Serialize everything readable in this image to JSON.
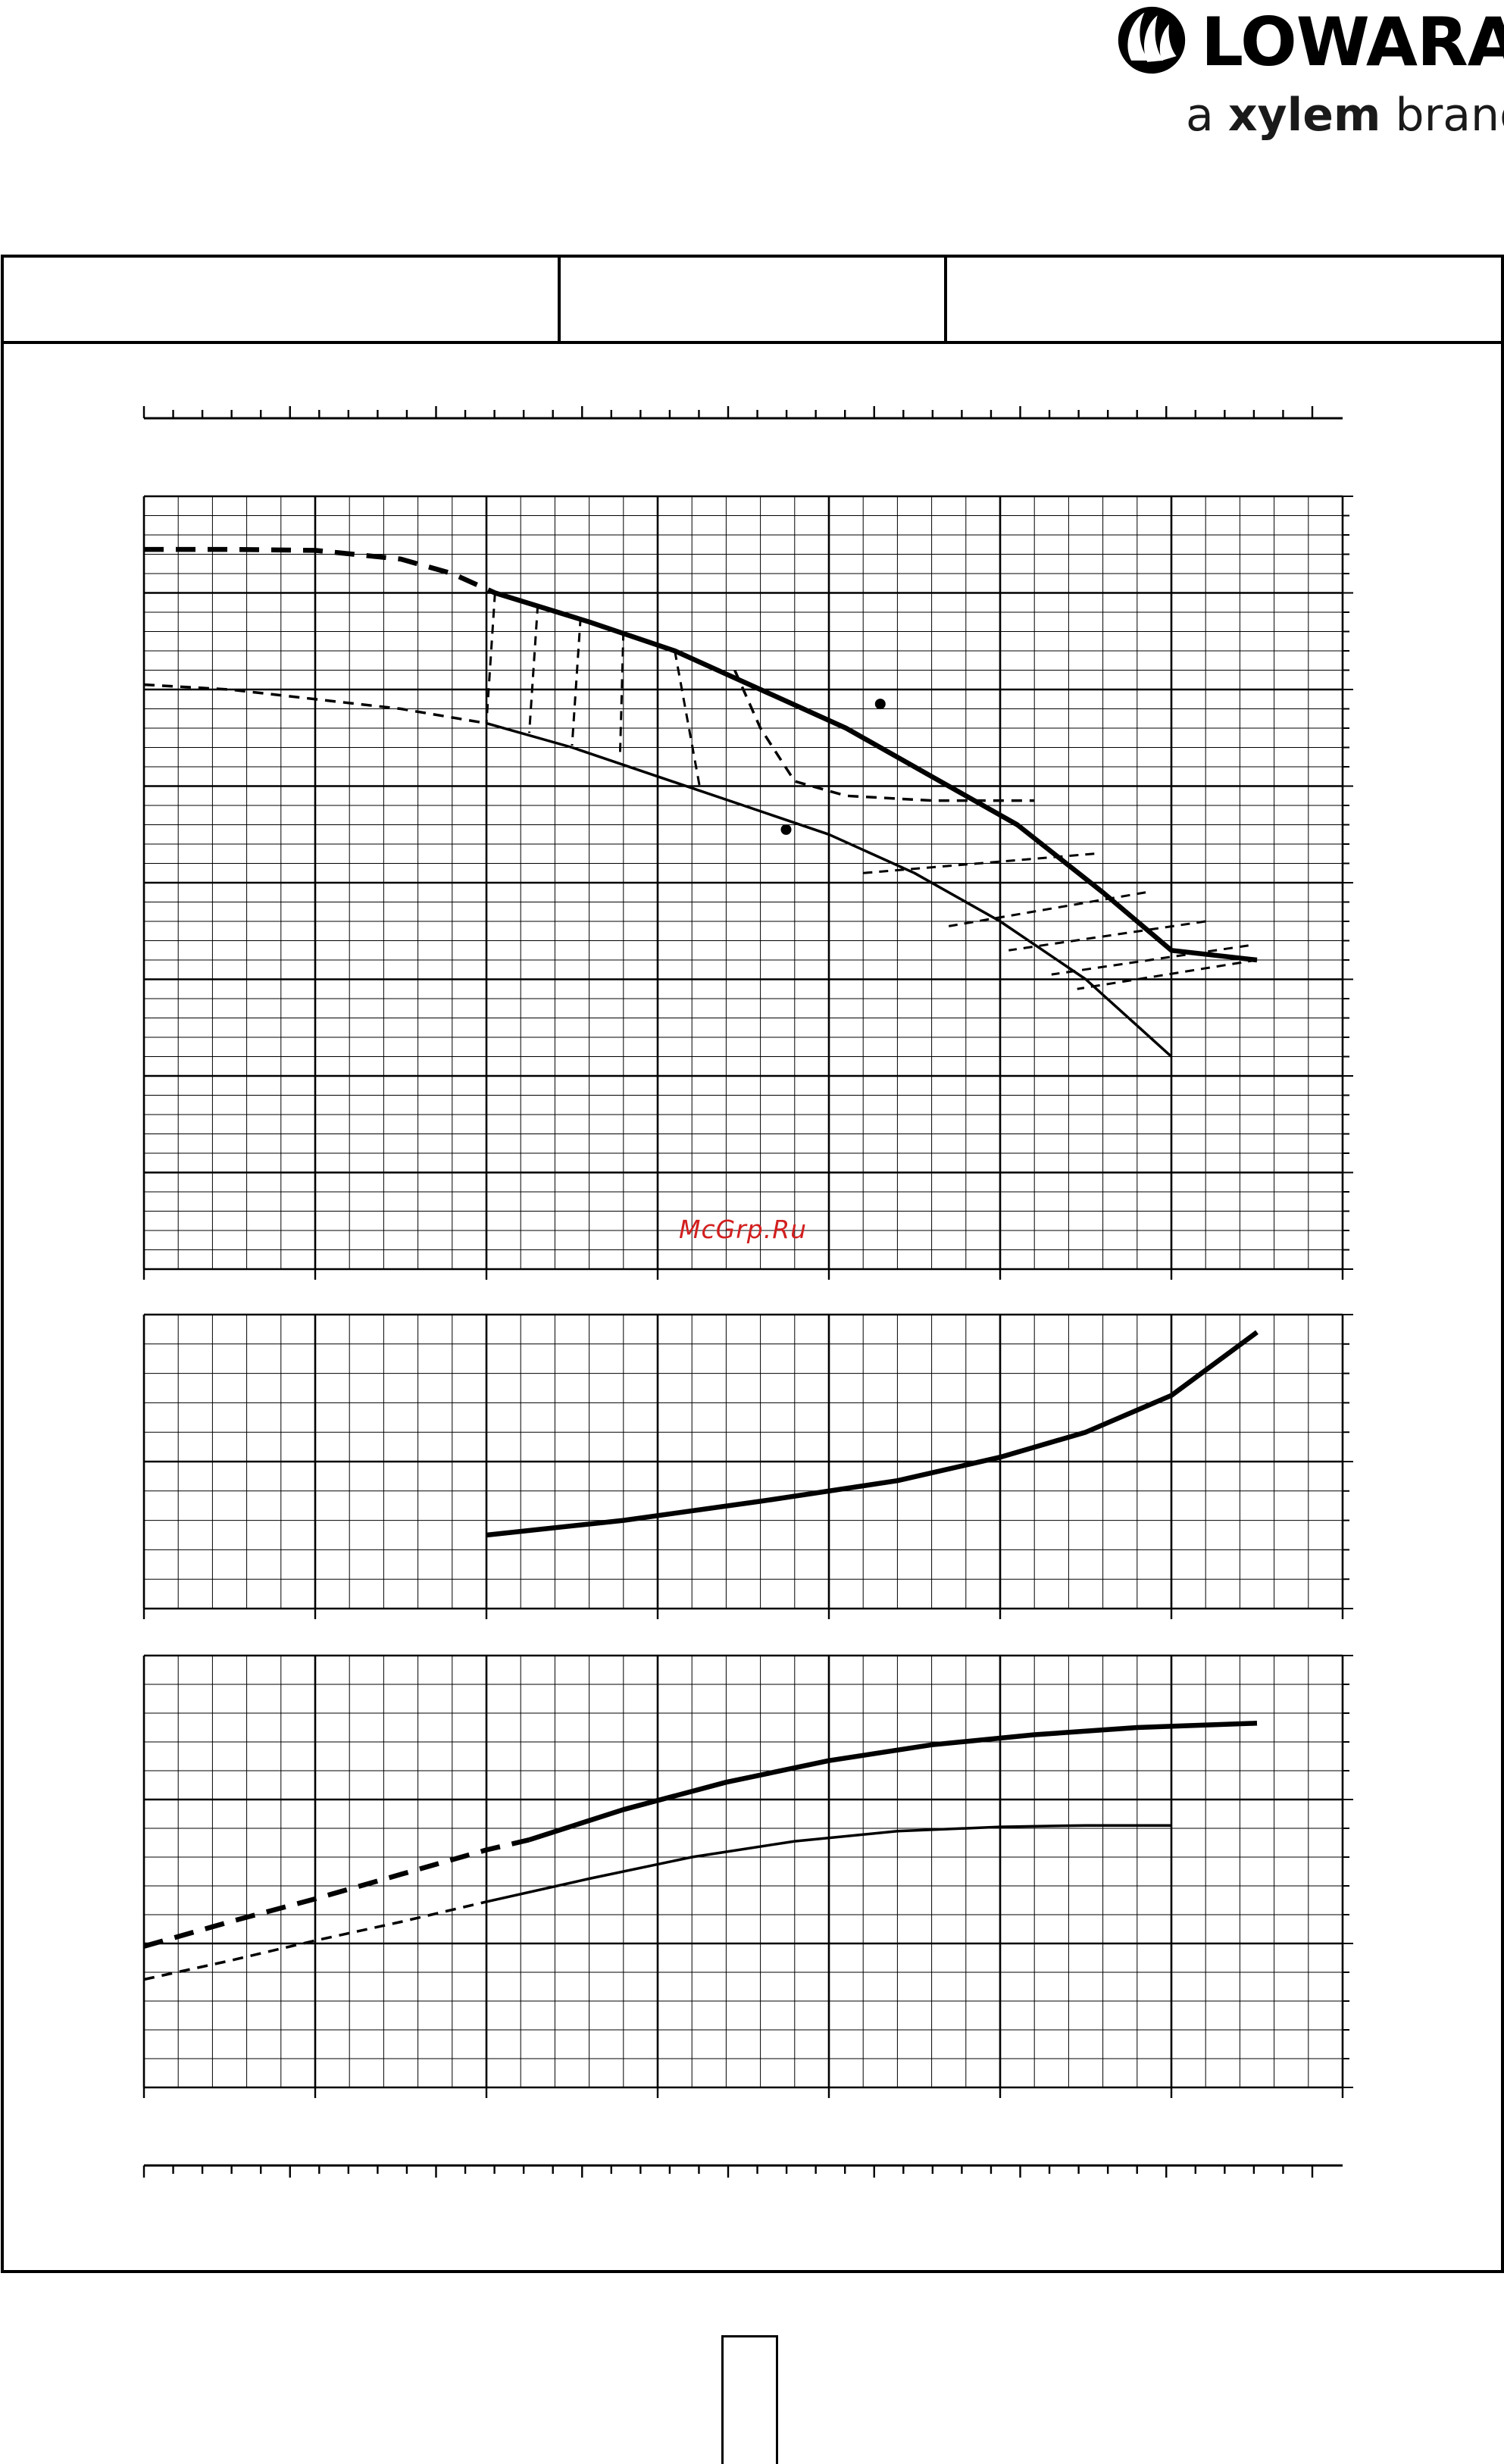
{
  "brand": {
    "name": "LOWARA",
    "tagline_prefix": "a",
    "tagline_brand": "xylem",
    "tagline_suffix": "brand"
  },
  "header": {
    "cells": [
      "",
      "",
      ""
    ]
  },
  "watermark": "McGrp.Ru",
  "page_number": "",
  "chart_data": [
    {
      "type": "line",
      "title": "",
      "xlabel": "",
      "ylabel": "",
      "xlim": [
        0,
        7
      ],
      "ylim": [
        0,
        8
      ],
      "grid": true,
      "series": [
        {
          "style": "thick-dashed",
          "x": [
            0,
            0.5,
            1.0,
            1.5,
            1.8,
            2.05
          ],
          "y": [
            7.45,
            7.45,
            7.44,
            7.35,
            7.2,
            7.0
          ]
        },
        {
          "style": "thick",
          "x": [
            2.05,
            2.6,
            3.1,
            3.6,
            4.1,
            4.6,
            5.1,
            5.6,
            6.0,
            6.5
          ],
          "y": [
            7.0,
            6.7,
            6.4,
            6.0,
            5.6,
            5.1,
            4.6,
            3.9,
            3.3,
            3.2
          ]
        },
        {
          "style": "thin-dashed",
          "x": [
            0,
            0.5,
            1.0,
            1.5,
            2.0
          ],
          "y": [
            6.05,
            6.0,
            5.9,
            5.8,
            5.65
          ]
        },
        {
          "style": "thin",
          "x": [
            2.0,
            2.5,
            3.0,
            3.5,
            4.0,
            4.5,
            5.0,
            5.5,
            6.0
          ],
          "y": [
            5.65,
            5.4,
            5.1,
            4.8,
            4.5,
            4.1,
            3.6,
            3.0,
            2.2
          ]
        },
        {
          "style": "thin-dashed",
          "x": [
            3.45,
            3.6,
            3.8,
            4.1,
            4.6,
            5.0,
            5.2
          ],
          "y": [
            6.2,
            5.6,
            5.05,
            4.9,
            4.85,
            4.85,
            4.85
          ]
        }
      ]
    },
    {
      "type": "line",
      "title": "",
      "xlabel": "",
      "ylabel": "",
      "xlim": [
        0,
        7
      ],
      "ylim": [
        0,
        2
      ],
      "grid": true,
      "series": [
        {
          "style": "thick",
          "x": [
            2.0,
            2.8,
            3.6,
            4.4,
            5.0,
            5.5,
            6.0,
            6.5
          ],
          "y": [
            0.5,
            0.6,
            0.73,
            0.87,
            1.03,
            1.2,
            1.45,
            1.88
          ]
        }
      ]
    },
    {
      "type": "line",
      "title": "",
      "xlabel": "",
      "ylabel": "",
      "xlim": [
        0,
        7
      ],
      "ylim": [
        0,
        3
      ],
      "grid": true,
      "series": [
        {
          "style": "thick-dashed",
          "x": [
            0,
            0.5,
            1.0,
            1.5,
            2.0,
            2.25
          ],
          "y": [
            0.98,
            1.15,
            1.31,
            1.48,
            1.65,
            1.72
          ]
        },
        {
          "style": "thick",
          "x": [
            2.25,
            2.8,
            3.4,
            4.0,
            4.6,
            5.2,
            5.8,
            6.5
          ],
          "y": [
            1.72,
            1.93,
            2.12,
            2.27,
            2.38,
            2.45,
            2.5,
            2.53
          ]
        },
        {
          "style": "thin-dashed",
          "x": [
            0,
            0.5,
            1.0,
            1.5,
            2.0
          ],
          "y": [
            0.75,
            0.88,
            1.02,
            1.15,
            1.29
          ]
        },
        {
          "style": "thin",
          "x": [
            2.0,
            2.6,
            3.2,
            3.8,
            4.4,
            5.0,
            5.5,
            6.0
          ],
          "y": [
            1.29,
            1.45,
            1.6,
            1.71,
            1.78,
            1.81,
            1.82,
            1.82
          ]
        }
      ]
    }
  ]
}
